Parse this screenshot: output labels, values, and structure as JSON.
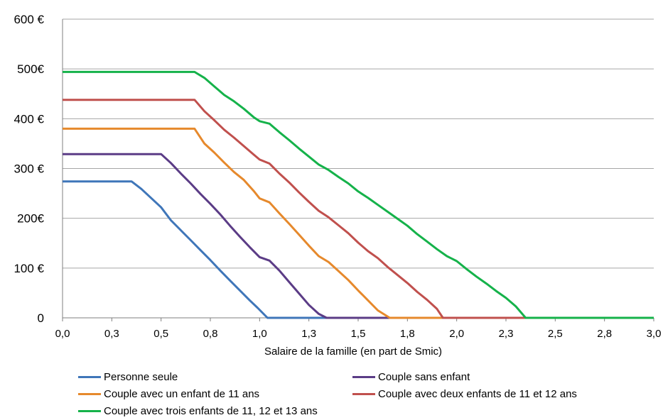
{
  "chart_data": {
    "type": "line",
    "xlabel": "Salaire de la famille (en part de Smic)",
    "ylabel": "",
    "xlim": [
      0,
      3.0
    ],
    "ylim": [
      0,
      600
    ],
    "x_ticks": [
      "0,0",
      "0,3",
      "0,5",
      "0,8",
      "1,0",
      "1,3",
      "1,5",
      "1,8",
      "2,0",
      "2,3",
      "2,5",
      "2,8",
      "3,0"
    ],
    "y_ticks": [
      {
        "value": 0,
        "label": "0"
      },
      {
        "value": 100,
        "label": "100 €"
      },
      {
        "value": 200,
        "label": "200€"
      },
      {
        "value": 300,
        "label": "300 €"
      },
      {
        "value": 400,
        "label": "400 €"
      },
      {
        "value": 500,
        "label": "500€"
      },
      {
        "value": 600,
        "label": "600 €"
      }
    ],
    "grid": "horizontal",
    "legend_position": "bottom",
    "series": [
      {
        "name": "Personne seule",
        "color": "#3F76B9",
        "points": [
          [
            0,
            274
          ],
          [
            0.35,
            274
          ],
          [
            0.4,
            259
          ],
          [
            0.5,
            222
          ],
          [
            0.55,
            196
          ],
          [
            0.6,
            176
          ],
          [
            0.65,
            156
          ],
          [
            0.7,
            136
          ],
          [
            0.75,
            116
          ],
          [
            0.8,
            95
          ],
          [
            0.85,
            75
          ],
          [
            0.9,
            55
          ],
          [
            0.95,
            35
          ],
          [
            0.99,
            20
          ],
          [
            1.04,
            0
          ],
          [
            3.0,
            0
          ]
        ]
      },
      {
        "name": "Couple sans enfant",
        "color": "#5B3C86",
        "points": [
          [
            0,
            329
          ],
          [
            0.5,
            329
          ],
          [
            0.55,
            311
          ],
          [
            0.6,
            290
          ],
          [
            0.65,
            270
          ],
          [
            0.7,
            249
          ],
          [
            0.75,
            229
          ],
          [
            0.8,
            208
          ],
          [
            0.85,
            185
          ],
          [
            0.9,
            163
          ],
          [
            0.95,
            142
          ],
          [
            1.0,
            122
          ],
          [
            1.05,
            115
          ],
          [
            1.1,
            95
          ],
          [
            1.15,
            72
          ],
          [
            1.2,
            49
          ],
          [
            1.25,
            26
          ],
          [
            1.3,
            8
          ],
          [
            1.34,
            0
          ],
          [
            3.0,
            0
          ]
        ]
      },
      {
        "name": "Couple avec un enfant de 11 ans",
        "color": "#E6892C",
        "points": [
          [
            0,
            380
          ],
          [
            0.67,
            380
          ],
          [
            0.72,
            350
          ],
          [
            0.77,
            332
          ],
          [
            0.82,
            312
          ],
          [
            0.87,
            293
          ],
          [
            0.92,
            277
          ],
          [
            0.97,
            255
          ],
          [
            1.0,
            240
          ],
          [
            1.05,
            232
          ],
          [
            1.1,
            210
          ],
          [
            1.15,
            189
          ],
          [
            1.2,
            167
          ],
          [
            1.25,
            145
          ],
          [
            1.3,
            124
          ],
          [
            1.35,
            112
          ],
          [
            1.4,
            94
          ],
          [
            1.45,
            76
          ],
          [
            1.5,
            55
          ],
          [
            1.55,
            35
          ],
          [
            1.6,
            15
          ],
          [
            1.66,
            0
          ],
          [
            3.0,
            0
          ]
        ]
      },
      {
        "name": "Couple avec deux enfants de 11 et 12 ans",
        "color": "#C0504D",
        "points": [
          [
            0,
            438
          ],
          [
            0.67,
            438
          ],
          [
            0.72,
            415
          ],
          [
            0.77,
            397
          ],
          [
            0.82,
            378
          ],
          [
            0.87,
            362
          ],
          [
            0.92,
            345
          ],
          [
            0.97,
            328
          ],
          [
            1.0,
            318
          ],
          [
            1.05,
            310
          ],
          [
            1.1,
            290
          ],
          [
            1.15,
            272
          ],
          [
            1.2,
            252
          ],
          [
            1.25,
            233
          ],
          [
            1.3,
            215
          ],
          [
            1.35,
            202
          ],
          [
            1.4,
            186
          ],
          [
            1.45,
            170
          ],
          [
            1.5,
            151
          ],
          [
            1.55,
            134
          ],
          [
            1.6,
            120
          ],
          [
            1.65,
            102
          ],
          [
            1.7,
            86
          ],
          [
            1.75,
            70
          ],
          [
            1.8,
            52
          ],
          [
            1.85,
            36
          ],
          [
            1.9,
            18
          ],
          [
            1.93,
            0
          ],
          [
            3.0,
            0
          ]
        ]
      },
      {
        "name": "Couple avec trois enfants de 11, 12 et 13 ans",
        "color": "#15B24A",
        "points": [
          [
            0,
            494
          ],
          [
            0.67,
            494
          ],
          [
            0.72,
            482
          ],
          [
            0.77,
            465
          ],
          [
            0.82,
            448
          ],
          [
            0.87,
            435
          ],
          [
            0.92,
            420
          ],
          [
            0.97,
            403
          ],
          [
            1.0,
            395
          ],
          [
            1.05,
            390
          ],
          [
            1.1,
            373
          ],
          [
            1.15,
            357
          ],
          [
            1.2,
            340
          ],
          [
            1.25,
            324
          ],
          [
            1.3,
            308
          ],
          [
            1.35,
            297
          ],
          [
            1.4,
            283
          ],
          [
            1.45,
            270
          ],
          [
            1.5,
            254
          ],
          [
            1.55,
            241
          ],
          [
            1.6,
            227
          ],
          [
            1.65,
            213
          ],
          [
            1.7,
            199
          ],
          [
            1.75,
            185
          ],
          [
            1.8,
            168
          ],
          [
            1.85,
            153
          ],
          [
            1.9,
            138
          ],
          [
            1.95,
            124
          ],
          [
            2.0,
            114
          ],
          [
            2.05,
            98
          ],
          [
            2.1,
            83
          ],
          [
            2.15,
            69
          ],
          [
            2.2,
            54
          ],
          [
            2.25,
            40
          ],
          [
            2.3,
            23
          ],
          [
            2.35,
            0
          ],
          [
            3.0,
            0
          ]
        ]
      }
    ]
  }
}
